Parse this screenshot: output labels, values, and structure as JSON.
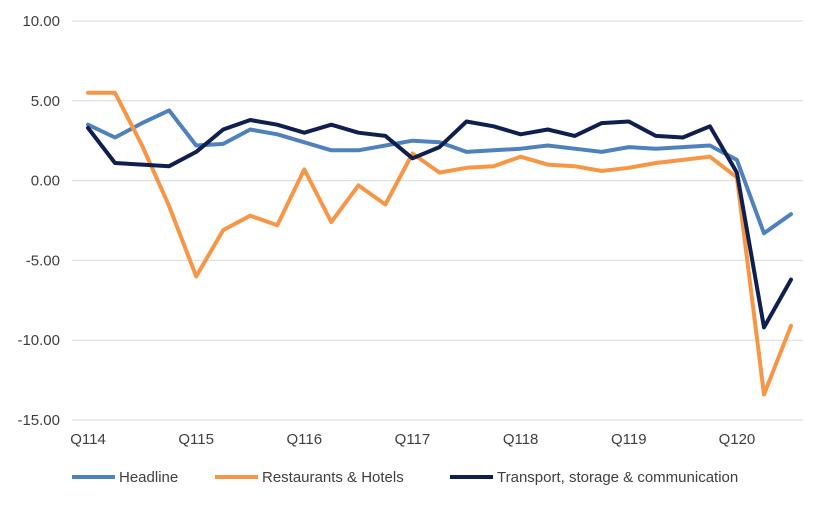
{
  "chart_data": {
    "type": "line",
    "title": "",
    "xlabel": "",
    "ylabel": "",
    "ylim": [
      -15,
      10
    ],
    "yticks": [
      10,
      5,
      0,
      -5,
      -10,
      -15
    ],
    "ytick_labels": [
      "10.00",
      "5.00",
      "0.00",
      "-5.00",
      "-10.00",
      "-15.00"
    ],
    "x_tick_labels": [
      "Q114",
      "Q115",
      "Q116",
      "Q117",
      "Q118",
      "Q119",
      "Q120"
    ],
    "x_tick_positions": [
      0,
      4,
      8,
      12,
      16,
      20,
      24
    ],
    "gridlines": true,
    "legend_position": "bottom",
    "series": [
      {
        "name": "Headline",
        "color": "#4f81bd",
        "values": [
          3.5,
          2.7,
          3.6,
          4.4,
          2.2,
          2.3,
          3.2,
          2.9,
          2.4,
          1.9,
          1.9,
          2.2,
          2.5,
          2.4,
          1.8,
          1.9,
          2.0,
          2.2,
          2.0,
          1.8,
          2.1,
          2.0,
          2.1,
          2.2,
          1.3,
          -3.3,
          -2.1
        ]
      },
      {
        "name": "Restaurants & Hotels",
        "color": "#f79646",
        "values": [
          5.5,
          5.5,
          2.2,
          -1.6,
          -6.0,
          -3.1,
          -2.2,
          -2.8,
          0.7,
          -2.6,
          -0.3,
          -1.5,
          1.7,
          0.5,
          0.8,
          0.9,
          1.5,
          1.0,
          0.9,
          0.6,
          0.8,
          1.1,
          1.3,
          1.5,
          0.2,
          -13.4,
          -9.1
        ]
      },
      {
        "name": "Transport, storage & communication",
        "color": "#0f1f4f",
        "values": [
          3.3,
          1.1,
          1.0,
          0.9,
          1.8,
          3.2,
          3.8,
          3.5,
          3.0,
          3.5,
          3.0,
          2.8,
          1.4,
          2.1,
          3.7,
          3.4,
          2.9,
          3.2,
          2.8,
          3.6,
          3.7,
          2.8,
          2.7,
          3.4,
          0.5,
          -9.2,
          -6.2
        ]
      }
    ]
  }
}
